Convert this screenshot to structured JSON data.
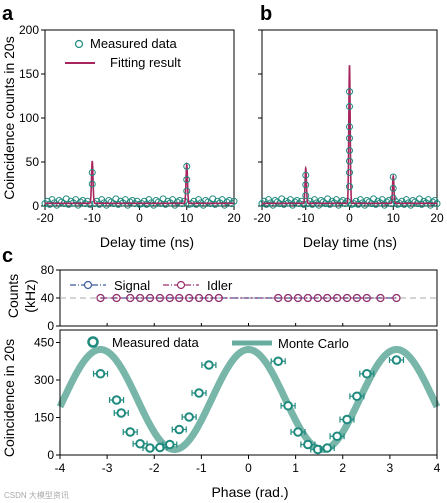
{
  "figure": {
    "watermark": "CSDN 大模型资讯"
  },
  "colors": {
    "teal": "#1f8a7e",
    "crimson": "#a8245c",
    "signal_blue": "#3d5b9e",
    "idler_magenta": "#9a2e6b",
    "band": "#4c9e8e",
    "ref_line": "#aaaaaa"
  },
  "chart_data": [
    {
      "panel": "a",
      "type": "scatter",
      "ylabel": "Coincidence counts in 20s",
      "xlabel": "Delay time (ns)",
      "xlim": [
        -20,
        20
      ],
      "ylim": [
        0,
        200
      ],
      "xticks": [
        -20,
        -10,
        0,
        10,
        20
      ],
      "yticks": [
        0,
        50,
        100,
        150,
        200
      ],
      "legend": {
        "position": "top-right",
        "entries": [
          "Measured data",
          "Fitting result"
        ]
      },
      "background_level": 3,
      "peaks": [
        {
          "x": -10,
          "height": 48,
          "width": 0.22
        },
        {
          "x": 10,
          "height": 44,
          "width": 0.22
        }
      ],
      "measured_peak_points": [
        {
          "x": -10,
          "y": 38
        },
        {
          "x": -10,
          "y": 25
        },
        {
          "x": 10,
          "y": 45
        },
        {
          "x": 10,
          "y": 30
        },
        {
          "x": 10,
          "y": 17
        }
      ],
      "series": [
        {
          "name": "Measured data",
          "kind": "circles"
        },
        {
          "name": "Fitting result",
          "kind": "line"
        }
      ]
    },
    {
      "panel": "b",
      "type": "scatter",
      "xlabel": "Delay time (ns)",
      "xlim": [
        -20,
        20
      ],
      "ylim": [
        0,
        200
      ],
      "xticks": [
        -20,
        -10,
        0,
        10,
        20
      ],
      "yticks": [
        0,
        50,
        100,
        150,
        200
      ],
      "background_level": 3,
      "peaks": [
        {
          "x": -10,
          "height": 40,
          "width": 0.22
        },
        {
          "x": 0,
          "height": 157,
          "width": 0.22
        },
        {
          "x": 10,
          "height": 31,
          "width": 0.22
        }
      ],
      "measured_peak_points": [
        {
          "x": -10,
          "y": 35
        },
        {
          "x": -10,
          "y": 24
        },
        {
          "x": -10,
          "y": 12
        },
        {
          "x": 0,
          "y": 130
        },
        {
          "x": 0,
          "y": 113
        },
        {
          "x": 0,
          "y": 90
        },
        {
          "x": 0,
          "y": 77
        },
        {
          "x": 0,
          "y": 63
        },
        {
          "x": 0,
          "y": 51
        },
        {
          "x": 0,
          "y": 38
        },
        {
          "x": 0,
          "y": 22
        },
        {
          "x": 10,
          "y": 33
        },
        {
          "x": 10,
          "y": 20
        },
        {
          "x": 10,
          "y": 9
        }
      ],
      "series": [
        {
          "name": "Measured data",
          "kind": "circles"
        },
        {
          "name": "Fitting result",
          "kind": "line"
        }
      ]
    },
    {
      "panel": "c-top",
      "type": "line",
      "ylabel_lines": [
        "Counts",
        "(kHz)"
      ],
      "xlim": [
        -4,
        4
      ],
      "ylim": [
        0,
        80
      ],
      "yticks": [
        0,
        40,
        80
      ],
      "reference_y": 40,
      "legend": {
        "position": "top-left",
        "entries": [
          "Signal",
          "Idler"
        ]
      },
      "x": [
        -3.14,
        -2.8,
        -2.51,
        -2.3,
        -2.09,
        -1.88,
        -1.67,
        -1.47,
        -1.26,
        -1.05,
        -0.84,
        -0.63,
        0.63,
        0.84,
        1.05,
        1.26,
        1.47,
        1.67,
        1.88,
        2.09,
        2.3,
        2.51,
        2.8,
        3.14
      ],
      "series": [
        {
          "name": "Signal",
          "constant": 40
        },
        {
          "name": "Idler",
          "constant": 40
        }
      ]
    },
    {
      "panel": "c-bottom",
      "type": "scatter",
      "ylabel": "Coincidence in 20s",
      "xlabel": "Phase (rad.)",
      "xlim": [
        -4,
        4
      ],
      "ylim": [
        0,
        500
      ],
      "xticks": [
        -4,
        -3,
        -2,
        -1,
        0,
        1,
        2,
        3,
        4
      ],
      "yticks": [
        0,
        150,
        300,
        450
      ],
      "legend": {
        "position": "top",
        "entries": [
          "Measured data",
          "Monte Carlo"
        ]
      },
      "model": {
        "mean": 222,
        "amplitude": 200
      },
      "series": [
        {
          "name": "Measured data",
          "points": [
            {
              "x": -3.14,
              "y": 325
            },
            {
              "x": -2.8,
              "y": 220
            },
            {
              "x": -2.7,
              "y": 168
            },
            {
              "x": -2.51,
              "y": 92
            },
            {
              "x": -2.3,
              "y": 45
            },
            {
              "x": -2.09,
              "y": 28
            },
            {
              "x": -1.88,
              "y": 30
            },
            {
              "x": -1.67,
              "y": 42
            },
            {
              "x": -1.47,
              "y": 102
            },
            {
              "x": -1.26,
              "y": 152
            },
            {
              "x": -1.05,
              "y": 248
            },
            {
              "x": -0.84,
              "y": 360
            },
            {
              "x": 0.63,
              "y": 375
            },
            {
              "x": 0.84,
              "y": 197
            },
            {
              "x": 1.05,
              "y": 92
            },
            {
              "x": 1.26,
              "y": 42
            },
            {
              "x": 1.47,
              "y": 22
            },
            {
              "x": 1.67,
              "y": 28
            },
            {
              "x": 1.88,
              "y": 75
            },
            {
              "x": 2.09,
              "y": 142
            },
            {
              "x": 2.3,
              "y": 235
            },
            {
              "x": 2.51,
              "y": 325
            },
            {
              "x": 3.14,
              "y": 380
            }
          ]
        },
        {
          "name": "Monte Carlo",
          "kind": "band"
        }
      ]
    }
  ]
}
